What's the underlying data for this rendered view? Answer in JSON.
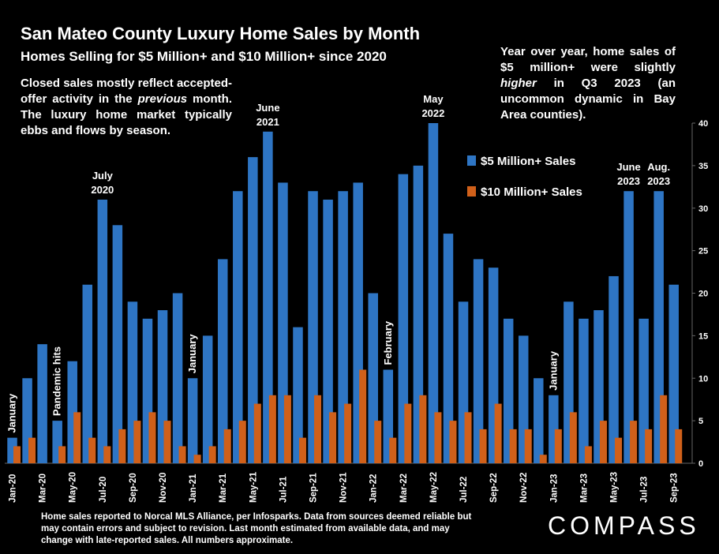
{
  "title": "San Mateo County Luxury Home Sales by Month",
  "subtitle": "Homes Selling for $5 Million+ and $10 Million+ since 2020",
  "note_left_parts": [
    "Closed sales mostly reflect accepted-offer activity in the ",
    "previous",
    " month. The luxury home market typically ebbs and flows by season."
  ],
  "note_right_parts": [
    "Year over year, home sales of $5 million+ were slightly ",
    "higher",
    " in Q3 2023 (an uncommon dynamic in Bay Area counties)."
  ],
  "footer": "Home sales reported to Norcal MLS Alliance, per Infosparks. Data from sources deemed reliable but may contain errors and subject to revision.  Last month estimated from available data, and may change with late-reported sales. All numbers approximate.",
  "logo_text": "COMPASS",
  "chart_data": {
    "type": "bar",
    "categories": [
      "Jan-20",
      "Feb-20",
      "Mar-20",
      "Apr-20",
      "May-20",
      "Jun-20",
      "Jul-20",
      "Aug-20",
      "Sep-20",
      "Oct-20",
      "Nov-20",
      "Dec-20",
      "Jan-21",
      "Feb-21",
      "Mar-21",
      "Apr-21",
      "May-21",
      "Jun-21",
      "Jul-21",
      "Aug-21",
      "Sep-21",
      "Oct-21",
      "Nov-21",
      "Dec-21",
      "Jan-22",
      "Feb-22",
      "Mar-22",
      "Apr-22",
      "May-22",
      "Jun-22",
      "Jul-22",
      "Aug-22",
      "Sep-22",
      "Oct-22",
      "Nov-22",
      "Dec-22",
      "Jan-23",
      "Feb-23",
      "Mar-23",
      "Apr-23",
      "May-23",
      "Jun-23",
      "Jul-23",
      "Aug-23",
      "Sep-23"
    ],
    "tick_labels": [
      "Jan-20",
      "Mar-20",
      "May-20",
      "Jul-20",
      "Sep-20",
      "Nov-20",
      "Jan-21",
      "Mar-21",
      "May-21",
      "Jul-21",
      "Sep-21",
      "Nov-21",
      "Jan-22",
      "Mar-22",
      "May-22",
      "Jul-22",
      "Sep-22",
      "Nov-22",
      "Jan-23",
      "Mar-23",
      "May-23",
      "Jul-23",
      "Sep-23"
    ],
    "series": [
      {
        "name": "$5 Million+ Sales",
        "color": "#2e75c4",
        "values": [
          3,
          10,
          14,
          5,
          12,
          21,
          31,
          28,
          19,
          17,
          18,
          20,
          10,
          15,
          24,
          32,
          36,
          39,
          33,
          16,
          32,
          31,
          32,
          33,
          20,
          11,
          34,
          35,
          40,
          27,
          19,
          24,
          23,
          17,
          15,
          10,
          8,
          19,
          17,
          18,
          22,
          32,
          17,
          32,
          21
        ]
      },
      {
        "name": "$10 Million+ Sales",
        "color": "#d0601a",
        "values": [
          2,
          3,
          0,
          2,
          6,
          3,
          2,
          4,
          5,
          6,
          5,
          2,
          1,
          2,
          4,
          5,
          7,
          8,
          8,
          3,
          8,
          6,
          7,
          11,
          5,
          3,
          7,
          8,
          6,
          5,
          6,
          4,
          7,
          4,
          4,
          1,
          4,
          6,
          2,
          5,
          3,
          5,
          4,
          8,
          4
        ]
      }
    ],
    "ylim": [
      0,
      40
    ],
    "yticks": [
      0,
      5,
      10,
      15,
      20,
      25,
      30,
      35,
      40
    ],
    "grid": false,
    "legend_position": "upper-right",
    "annotations": [
      {
        "category": "Jan-20",
        "lines": [
          "January"
        ],
        "orientation": "vertical"
      },
      {
        "category": "Apr-20",
        "lines": [
          "Pandemic hits"
        ],
        "orientation": "vertical"
      },
      {
        "category": "Jul-20",
        "lines": [
          "July",
          "2020"
        ],
        "orientation": "horizontal"
      },
      {
        "category": "Jan-21",
        "lines": [
          "January"
        ],
        "orientation": "vertical"
      },
      {
        "category": "Jun-21",
        "lines": [
          "June",
          "2021"
        ],
        "orientation": "horizontal"
      },
      {
        "category": "Feb-22",
        "lines": [
          "February"
        ],
        "orientation": "vertical"
      },
      {
        "category": "May-22",
        "lines": [
          "May",
          "2022"
        ],
        "orientation": "horizontal"
      },
      {
        "category": "Jan-23",
        "lines": [
          "January"
        ],
        "orientation": "vertical"
      },
      {
        "category": "Jun-23",
        "lines": [
          "June",
          "2023"
        ],
        "orientation": "horizontal"
      },
      {
        "category": "Aug-23",
        "lines": [
          "Aug.",
          "2023"
        ],
        "orientation": "horizontal"
      }
    ]
  }
}
